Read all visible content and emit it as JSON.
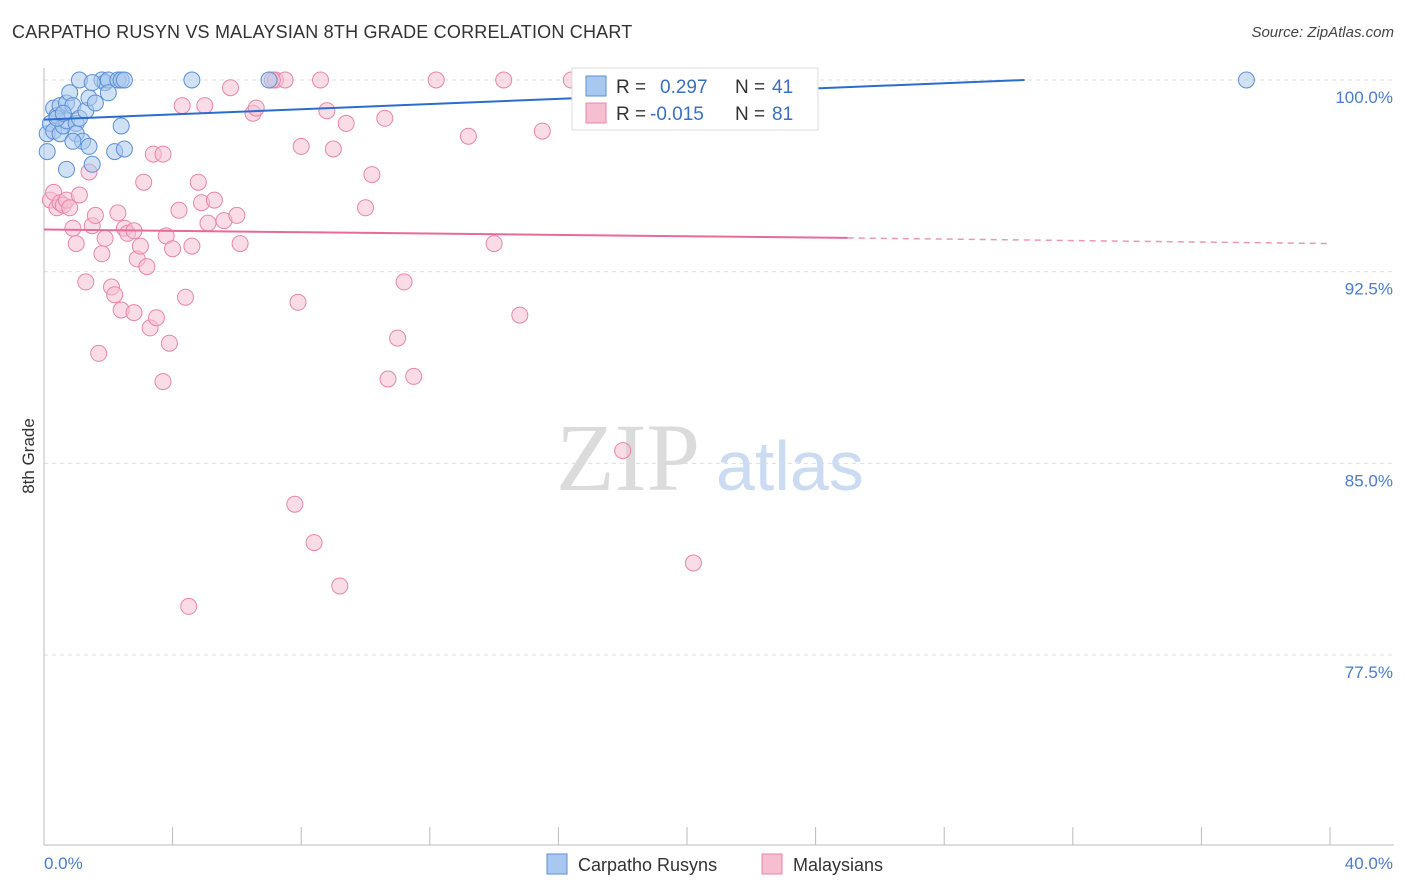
{
  "title": "CARPATHO RUSYN VS MALAYSIAN 8TH GRADE CORRELATION CHART",
  "source": "Source: ZipAtlas.com",
  "watermark": {
    "zip": "ZIP",
    "atlas": "atlas"
  },
  "colors": {
    "blue_fill": "#a9c8ef",
    "blue_stroke": "#5b8fd4",
    "blue_line": "#2a6dcc",
    "pink_fill": "#f6bfd1",
    "pink_stroke": "#e885a8",
    "pink_line": "#e56b98",
    "grid": "#dddddd",
    "axis": "#bbbbbb"
  },
  "legend": {
    "rows": [
      {
        "r_label": "R = ",
        "r_value": "0.297",
        "n_label": "N = ",
        "n_value": "41",
        "series": "blue"
      },
      {
        "r_label": "R = ",
        "r_value": "-0.015",
        "n_label": "N = ",
        "n_value": "81",
        "series": "pink"
      }
    ]
  },
  "bottom_legend": [
    "Carpatho Rusyns",
    "Malaysians"
  ],
  "chart_data": {
    "type": "scatter",
    "title": "CARPATHO RUSYN VS MALAYSIAN 8TH GRADE CORRELATION CHART",
    "xlabel": "",
    "ylabel": "8th Grade",
    "xlim": [
      0,
      40
    ],
    "ylim": [
      70.5,
      100.8
    ],
    "x_tick_labels": [
      {
        "value": 0,
        "label": "0.0%"
      },
      {
        "value": 40,
        "label": "40.0%"
      }
    ],
    "y_tick_labels": [
      {
        "value": 100,
        "label": "100.0%"
      },
      {
        "value": 92.5,
        "label": "92.5%"
      },
      {
        "value": 85,
        "label": "85.0%"
      },
      {
        "value": 77.5,
        "label": "77.5%"
      }
    ],
    "x_minor_ticks": [
      0,
      4,
      8,
      12,
      16,
      20,
      24,
      28,
      32,
      36,
      40
    ],
    "series": [
      {
        "name": "Carpatho Rusyns",
        "color": "blue",
        "R": 0.297,
        "N": 41,
        "trend": {
          "x_start": 0,
          "y_start": 98.45,
          "x_end": 30.5,
          "y_end": 100.0,
          "dashed_to": null
        },
        "points": [
          [
            0.1,
            97.2
          ],
          [
            0.1,
            97.9
          ],
          [
            0.2,
            98.3
          ],
          [
            0.3,
            98.9
          ],
          [
            0.3,
            98.0
          ],
          [
            0.4,
            98.6
          ],
          [
            0.5,
            97.9
          ],
          [
            0.5,
            99.0
          ],
          [
            0.6,
            98.2
          ],
          [
            0.7,
            98.4
          ],
          [
            0.7,
            99.1
          ],
          [
            0.8,
            99.5
          ],
          [
            0.9,
            99.0
          ],
          [
            1.0,
            98.3
          ],
          [
            1.0,
            97.9
          ],
          [
            1.1,
            98.5
          ],
          [
            1.2,
            97.6
          ],
          [
            1.3,
            98.8
          ],
          [
            1.4,
            99.3
          ],
          [
            1.4,
            97.4
          ],
          [
            1.5,
            96.7
          ],
          [
            1.6,
            99.1
          ],
          [
            1.8,
            100.0
          ],
          [
            1.9,
            99.9
          ],
          [
            2.0,
            100.0
          ],
          [
            2.2,
            97.2
          ],
          [
            2.3,
            100.0
          ],
          [
            2.0,
            99.5
          ],
          [
            2.4,
            98.2
          ],
          [
            2.4,
            100.0
          ],
          [
            2.5,
            100.0
          ],
          [
            2.5,
            97.3
          ],
          [
            4.6,
            100.0
          ],
          [
            7.0,
            100.0
          ],
          [
            1.1,
            100.0
          ],
          [
            0.7,
            96.5
          ],
          [
            0.4,
            98.5
          ],
          [
            0.9,
            97.6
          ],
          [
            0.6,
            98.7
          ],
          [
            37.4,
            100.0
          ],
          [
            1.5,
            99.9
          ]
        ]
      },
      {
        "name": "Malaysians",
        "color": "pink",
        "R": -0.015,
        "N": 81,
        "trend": {
          "x_start": 0,
          "y_start": 94.15,
          "x_end": 25,
          "y_end": 93.82,
          "dashed_to": [
            40,
            93.6
          ]
        },
        "points": [
          [
            0.2,
            95.3
          ],
          [
            0.3,
            95.6
          ],
          [
            0.4,
            95.0
          ],
          [
            0.5,
            95.2
          ],
          [
            0.6,
            95.1
          ],
          [
            0.7,
            95.3
          ],
          [
            0.8,
            95.0
          ],
          [
            0.9,
            94.2
          ],
          [
            1.0,
            93.6
          ],
          [
            1.1,
            95.5
          ],
          [
            1.3,
            92.1
          ],
          [
            1.4,
            96.4
          ],
          [
            1.5,
            94.3
          ],
          [
            1.6,
            94.7
          ],
          [
            1.7,
            89.3
          ],
          [
            1.8,
            93.2
          ],
          [
            1.9,
            93.8
          ],
          [
            2.1,
            91.9
          ],
          [
            2.2,
            91.6
          ],
          [
            2.3,
            94.8
          ],
          [
            2.4,
            91.0
          ],
          [
            2.5,
            94.2
          ],
          [
            2.6,
            94.0
          ],
          [
            2.8,
            90.9
          ],
          [
            2.9,
            93.0
          ],
          [
            3.0,
            93.5
          ],
          [
            3.1,
            96.0
          ],
          [
            3.2,
            92.7
          ],
          [
            3.3,
            90.3
          ],
          [
            3.4,
            97.1
          ],
          [
            3.5,
            90.7
          ],
          [
            3.7,
            88.2
          ],
          [
            3.8,
            93.9
          ],
          [
            3.9,
            89.7
          ],
          [
            4.0,
            93.4
          ],
          [
            4.2,
            94.9
          ],
          [
            4.3,
            99.0
          ],
          [
            4.4,
            91.5
          ],
          [
            4.5,
            79.4
          ],
          [
            4.6,
            93.5
          ],
          [
            4.8,
            96.0
          ],
          [
            4.9,
            95.2
          ],
          [
            5.0,
            99.0
          ],
          [
            5.1,
            94.4
          ],
          [
            5.3,
            95.3
          ],
          [
            5.6,
            94.5
          ],
          [
            5.8,
            99.7
          ],
          [
            6.0,
            94.7
          ],
          [
            6.1,
            93.6
          ],
          [
            6.5,
            98.7
          ],
          [
            6.6,
            98.9
          ],
          [
            7.2,
            100.0
          ],
          [
            7.5,
            100.0
          ],
          [
            7.8,
            83.4
          ],
          [
            7.9,
            91.3
          ],
          [
            8.0,
            97.4
          ],
          [
            8.4,
            81.9
          ],
          [
            8.6,
            100.0
          ],
          [
            8.8,
            98.8
          ],
          [
            9.0,
            97.3
          ],
          [
            9.2,
            80.2
          ],
          [
            9.4,
            98.3
          ],
          [
            10.0,
            95.0
          ],
          [
            10.2,
            96.3
          ],
          [
            10.7,
            88.3
          ],
          [
            11.0,
            89.9
          ],
          [
            11.2,
            92.1
          ],
          [
            11.5,
            88.4
          ],
          [
            12.2,
            100.0
          ],
          [
            13.2,
            97.8
          ],
          [
            14.0,
            93.6
          ],
          [
            14.3,
            100.0
          ],
          [
            14.8,
            90.8
          ],
          [
            15.5,
            98.0
          ],
          [
            16.4,
            100.0
          ],
          [
            18.0,
            85.5
          ],
          [
            20.2,
            81.1
          ],
          [
            10.6,
            98.5
          ],
          [
            3.7,
            97.1
          ],
          [
            7.1,
            100.0
          ],
          [
            2.8,
            94.1
          ]
        ]
      }
    ]
  }
}
